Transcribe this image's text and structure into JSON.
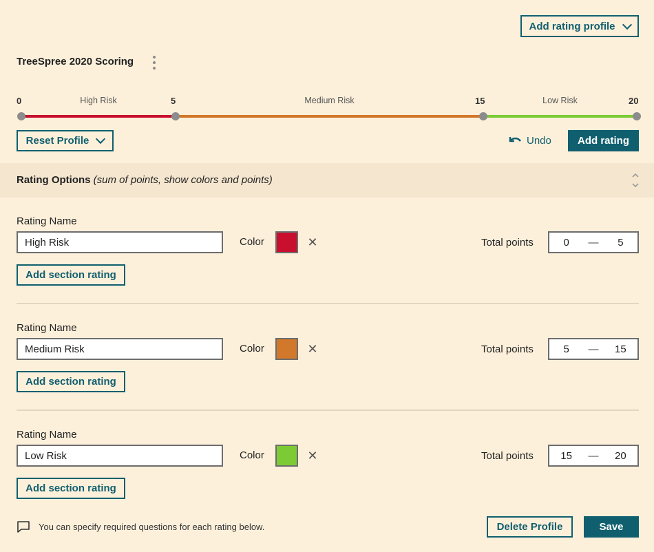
{
  "header": {
    "add_profile_label": "Add rating profile",
    "profile_title": "TreeSpree 2020 Scoring"
  },
  "scale": {
    "ticks": [
      "0",
      "5",
      "15",
      "20"
    ],
    "segments": [
      {
        "label": "High Risk",
        "color": "#c8102e"
      },
      {
        "label": "Medium Risk",
        "color": "#d2782a"
      },
      {
        "label": "Low Risk",
        "color": "#7ccb35"
      }
    ]
  },
  "toolbar": {
    "reset_label": "Reset Profile",
    "undo_label": "Undo",
    "add_rating_label": "Add rating"
  },
  "options": {
    "title": "Rating Options",
    "subtitle": "(sum of points, show colors and points)"
  },
  "ratings": [
    {
      "name_label": "Rating Name",
      "name": "High Risk",
      "color_label": "Color",
      "color": "#c8102e",
      "points_label": "Total points",
      "min": "0",
      "max": "5",
      "add_section_label": "Add section rating"
    },
    {
      "name_label": "Rating Name",
      "name": "Medium Risk",
      "color_label": "Color",
      "color": "#d2782a",
      "points_label": "Total points",
      "min": "5",
      "max": "15",
      "add_section_label": "Add section rating"
    },
    {
      "name_label": "Rating Name",
      "name": "Low Risk",
      "color_label": "Color",
      "color": "#7ccb35",
      "points_label": "Total points",
      "min": "15",
      "max": "20",
      "add_section_label": "Add section rating"
    }
  ],
  "footer": {
    "note": "You can specify required questions for each rating below.",
    "delete_label": "Delete Profile",
    "save_label": "Save"
  }
}
